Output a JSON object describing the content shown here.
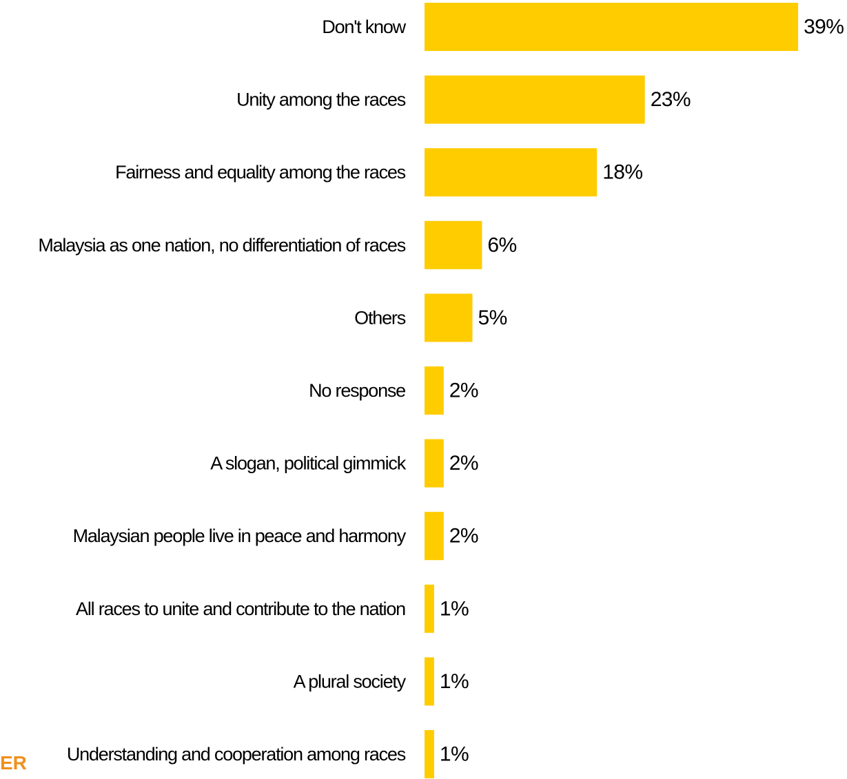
{
  "logo": {
    "text": "ER"
  },
  "chart_data": {
    "type": "bar",
    "orientation": "horizontal",
    "categories": [
      "Don't know",
      "Unity among the races",
      "Fairness and equality among the races",
      "Malaysia as one nation, no differentiation of races",
      "Others",
      "No response",
      "A slogan, political gimmick",
      "Malaysian people live in peace and harmony",
      "All races to unite and contribute to the nation",
      "A plural society",
      "Understanding and cooperation among races"
    ],
    "values": [
      39,
      23,
      18,
      6,
      5,
      2,
      2,
      2,
      1,
      1,
      1
    ],
    "value_labels": [
      "39%",
      "23%",
      "18%",
      "6%",
      "5%",
      "2%",
      "2%",
      "2%",
      "1%",
      "1%",
      "1%"
    ],
    "unit": "%",
    "bar_color": "#FFCC00",
    "grid": false,
    "legend": "none"
  }
}
